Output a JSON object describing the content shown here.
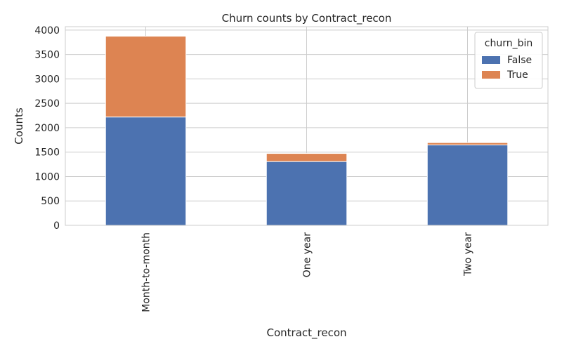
{
  "chart_data": {
    "type": "bar",
    "stacked": true,
    "title": "Churn counts by Contract_recon",
    "xlabel": "Contract_recon",
    "ylabel": "Counts",
    "categories": [
      "Month-to-month",
      "One year",
      "Two year"
    ],
    "series": [
      {
        "name": "False",
        "values": [
          2220,
          1307,
          1647
        ],
        "color": "#4c72b0"
      },
      {
        "name": "True",
        "values": [
          1655,
          166,
          48
        ],
        "color": "#dd8452"
      }
    ],
    "ylim": [
      0,
      4070
    ],
    "yticks": [
      0,
      500,
      1000,
      1500,
      2000,
      2500,
      3000,
      3500,
      4000
    ],
    "grid": true,
    "legend": {
      "title": "churn_bin",
      "placement": "top-right"
    }
  }
}
